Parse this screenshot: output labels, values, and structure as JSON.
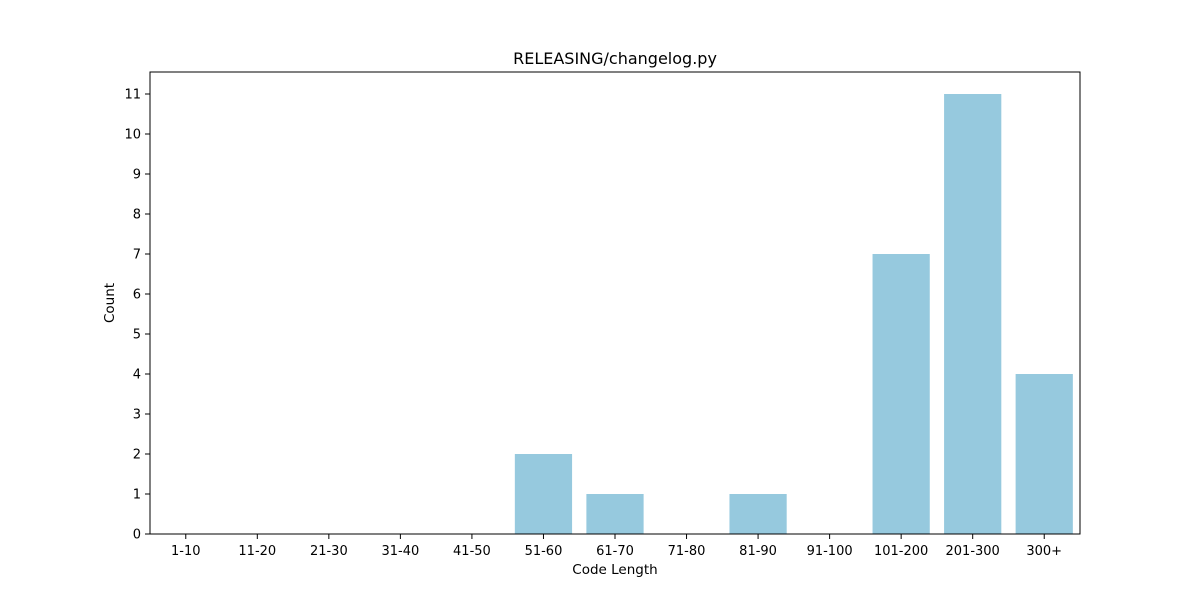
{
  "chart_data": {
    "type": "bar",
    "title": "RELEASING/changelog.py",
    "xlabel": "Code Length",
    "ylabel": "Count",
    "categories": [
      "1-10",
      "11-20",
      "21-30",
      "31-40",
      "41-50",
      "51-60",
      "61-70",
      "71-80",
      "81-90",
      "91-100",
      "101-200",
      "201-300",
      "300+"
    ],
    "values": [
      0,
      0,
      0,
      0,
      0,
      2,
      1,
      0,
      1,
      0,
      7,
      11,
      4
    ],
    "ylim": [
      0,
      11.55
    ],
    "yticks": [
      0,
      1,
      2,
      3,
      4,
      5,
      6,
      7,
      8,
      9,
      10,
      11
    ],
    "grid": false,
    "bar_color": "#96c9de"
  }
}
